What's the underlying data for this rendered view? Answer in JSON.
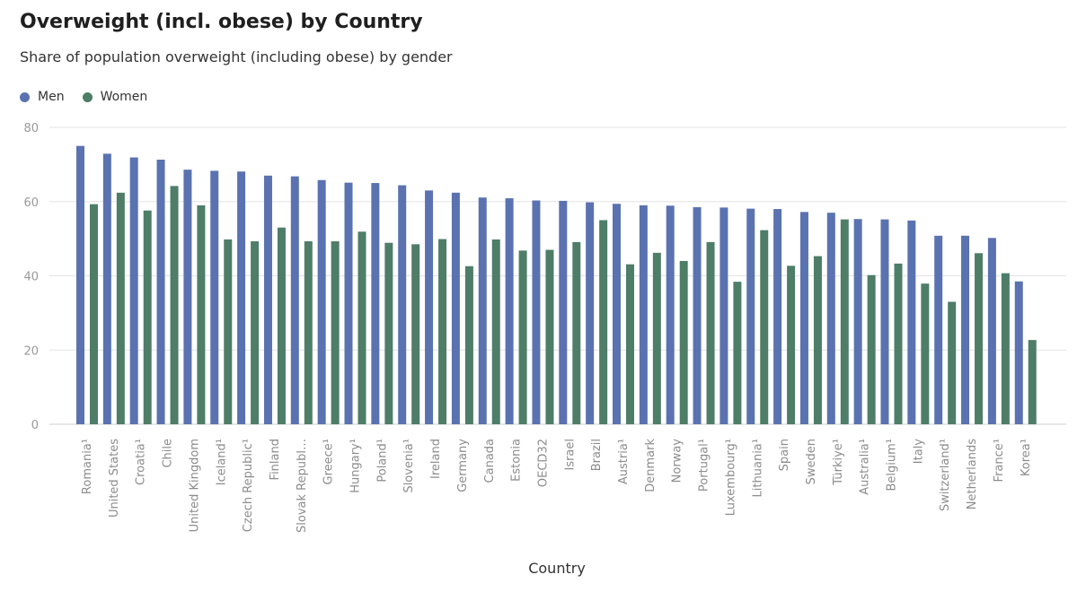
{
  "chart_data": {
    "type": "bar",
    "title": "Overweight (incl. obese) by Country",
    "subtitle": "Share of population overweight (including obese) by gender",
    "xlabel": "Country",
    "ylabel": "",
    "ylim": [
      0,
      80
    ],
    "yticks": [
      0,
      20,
      40,
      60,
      80
    ],
    "grid": true,
    "legend_position": "top-left",
    "categories": [
      "Romania¹",
      "United States",
      "Croatia¹",
      "Chile",
      "United Kingdom",
      "Iceland¹",
      "Czech Republic¹",
      "Finland",
      "Slovak Republ…",
      "Greece¹",
      "Hungary¹",
      "Poland¹",
      "Slovenia¹",
      "Ireland",
      "Germany",
      "Canada",
      "Estonia",
      "OECD32",
      "Israel",
      "Brazil",
      "Austria¹",
      "Denmark",
      "Norway",
      "Portugal¹",
      "Luxembourg¹",
      "Lithuania¹",
      "Spain",
      "Sweden",
      "Türkiye¹",
      "Australia¹",
      "Belgium¹",
      "Italy",
      "Switzerland¹",
      "Netherlands",
      "France¹",
      "Korea¹"
    ],
    "series": [
      {
        "name": "Men",
        "color": "#5a72b0",
        "values": [
          75.0,
          72.9,
          71.9,
          71.3,
          68.6,
          68.3,
          68.1,
          67.0,
          66.8,
          65.8,
          65.1,
          65.0,
          64.4,
          63.0,
          62.4,
          61.1,
          60.9,
          60.3,
          60.2,
          59.8,
          59.4,
          59.0,
          58.9,
          58.5,
          58.4,
          58.1,
          58.0,
          57.2,
          57.0,
          55.3,
          55.2,
          54.9,
          50.8,
          50.8,
          50.2,
          38.5
        ]
      },
      {
        "name": "Women",
        "color": "#4e7d68",
        "values": [
          59.3,
          62.4,
          57.6,
          64.2,
          59.0,
          49.8,
          49.3,
          53.0,
          49.3,
          49.3,
          51.9,
          48.9,
          48.5,
          49.9,
          42.6,
          49.8,
          46.8,
          47.0,
          49.1,
          55.0,
          43.1,
          46.2,
          44.0,
          49.1,
          38.4,
          52.3,
          42.7,
          45.3,
          55.2,
          40.2,
          43.3,
          37.9,
          33.0,
          46.1,
          40.7,
          22.7
        ]
      }
    ]
  }
}
